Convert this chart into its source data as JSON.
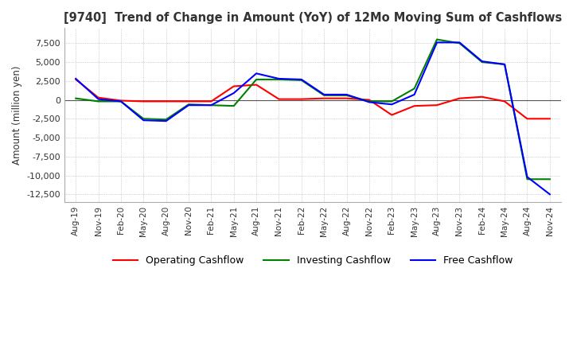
{
  "title": "[9740]  Trend of Change in Amount (YoY) of 12Mo Moving Sum of Cashflows",
  "ylabel": "Amount (million yen)",
  "x_labels": [
    "Aug-19",
    "Nov-19",
    "Feb-20",
    "May-20",
    "Aug-20",
    "Nov-20",
    "Feb-21",
    "May-21",
    "Aug-21",
    "Nov-21",
    "Feb-22",
    "May-22",
    "Aug-22",
    "Nov-22",
    "Feb-23",
    "May-23",
    "Aug-23",
    "Nov-23",
    "Feb-24",
    "May-24",
    "Aug-24",
    "Nov-24"
  ],
  "operating": [
    2700,
    300,
    -100,
    -200,
    -200,
    -200,
    -200,
    1800,
    2000,
    100,
    100,
    200,
    200,
    0,
    -2000,
    -800,
    -700,
    200,
    400,
    -200,
    -2500,
    -2500
  ],
  "investing": [
    200,
    -200,
    -200,
    -2500,
    -2600,
    -600,
    -700,
    -800,
    2700,
    2700,
    2600,
    600,
    600,
    -200,
    -200,
    1500,
    8000,
    7500,
    5000,
    4700,
    -10500,
    -10500
  ],
  "free": [
    2800,
    100,
    -200,
    -2700,
    -2800,
    -700,
    -700,
    900,
    3500,
    2800,
    2700,
    700,
    700,
    -300,
    -600,
    700,
    7600,
    7600,
    5100,
    4700,
    -10200,
    -12500
  ],
  "operating_color": "#ff0000",
  "investing_color": "#008000",
  "free_color": "#0000ff",
  "ylim": [
    -13500,
    9500
  ],
  "yticks": [
    -12500,
    -10000,
    -7500,
    -5000,
    -2500,
    0,
    2500,
    5000,
    7500
  ],
  "background_color": "#ffffff",
  "grid_color": "#aaaaaa"
}
